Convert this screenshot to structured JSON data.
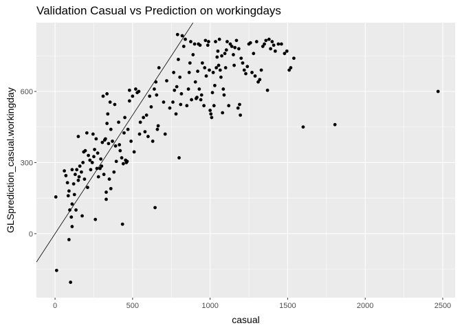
{
  "chart_data": {
    "type": "scatter",
    "title": "Validation Casual vs Prediction on workingdays",
    "xlabel": "casual",
    "ylabel": "GLSprediction_casual.workingday",
    "xlim": [
      -120,
      2580
    ],
    "ylim": [
      -270,
      890
    ],
    "x_ticks": [
      0,
      500,
      1000,
      1500,
      2000,
      2500
    ],
    "y_ticks": [
      0,
      300,
      600
    ],
    "grid": true,
    "panel_background": "#ebebeb",
    "grid_color": "#ffffff",
    "point_color": "#000000",
    "reference_line": {
      "slope": 1,
      "intercept": 0
    },
    "points": [
      [
        5,
        155
      ],
      [
        10,
        -155
      ],
      [
        60,
        265
      ],
      [
        70,
        245
      ],
      [
        80,
        215
      ],
      [
        90,
        180
      ],
      [
        85,
        160
      ],
      [
        90,
        -25
      ],
      [
        100,
        -205
      ],
      [
        95,
        100
      ],
      [
        105,
        70
      ],
      [
        110,
        30
      ],
      [
        110,
        125
      ],
      [
        110,
        270
      ],
      [
        120,
        210
      ],
      [
        125,
        165
      ],
      [
        130,
        250
      ],
      [
        135,
        100
      ],
      [
        140,
        270
      ],
      [
        150,
        410
      ],
      [
        150,
        225
      ],
      [
        155,
        240
      ],
      [
        160,
        285
      ],
      [
        170,
        260
      ],
      [
        175,
        75
      ],
      [
        180,
        300
      ],
      [
        185,
        345
      ],
      [
        190,
        230
      ],
      [
        195,
        350
      ],
      [
        205,
        425
      ],
      [
        210,
        195
      ],
      [
        215,
        330
      ],
      [
        225,
        310
      ],
      [
        230,
        270
      ],
      [
        240,
        300
      ],
      [
        245,
        420
      ],
      [
        250,
        325
      ],
      [
        255,
        355
      ],
      [
        260,
        60
      ],
      [
        265,
        400
      ],
      [
        270,
        275
      ],
      [
        275,
        340
      ],
      [
        280,
        240
      ],
      [
        290,
        275
      ],
      [
        295,
        315
      ],
      [
        300,
        285
      ],
      [
        305,
        385
      ],
      [
        310,
        580
      ],
      [
        315,
        250
      ],
      [
        320,
        395
      ],
      [
        325,
        400
      ],
      [
        330,
        175
      ],
      [
        330,
        145
      ],
      [
        335,
        590
      ],
      [
        335,
        465
      ],
      [
        340,
        505
      ],
      [
        345,
        380
      ],
      [
        350,
        230
      ],
      [
        355,
        555
      ],
      [
        360,
        440
      ],
      [
        360,
        190
      ],
      [
        370,
        390
      ],
      [
        380,
        260
      ],
      [
        385,
        545
      ],
      [
        390,
        370
      ],
      [
        395,
        305
      ],
      [
        410,
        470
      ],
      [
        415,
        375
      ],
      [
        420,
        350
      ],
      [
        430,
        320
      ],
      [
        435,
        40
      ],
      [
        440,
        295
      ],
      [
        445,
        425
      ],
      [
        450,
        490
      ],
      [
        455,
        310
      ],
      [
        460,
        300
      ],
      [
        465,
        305
      ],
      [
        470,
        440
      ],
      [
        480,
        560
      ],
      [
        480,
        605
      ],
      [
        490,
        390
      ],
      [
        500,
        580
      ],
      [
        510,
        345
      ],
      [
        520,
        610
      ],
      [
        530,
        595
      ],
      [
        540,
        600
      ],
      [
        545,
        420
      ],
      [
        550,
        470
      ],
      [
        570,
        490
      ],
      [
        580,
        430
      ],
      [
        590,
        500
      ],
      [
        600,
        410
      ],
      [
        610,
        580
      ],
      [
        620,
        535
      ],
      [
        630,
        390
      ],
      [
        640,
        610
      ],
      [
        645,
        110
      ],
      [
        650,
        640
      ],
      [
        655,
        585
      ],
      [
        660,
        440
      ],
      [
        665,
        455
      ],
      [
        670,
        700
      ],
      [
        700,
        555
      ],
      [
        710,
        420
      ],
      [
        720,
        645
      ],
      [
        740,
        530
      ],
      [
        760,
        555
      ],
      [
        765,
        680
      ],
      [
        770,
        605
      ],
      [
        780,
        505
      ],
      [
        785,
        620
      ],
      [
        790,
        840
      ],
      [
        795,
        735
      ],
      [
        800,
        320
      ],
      [
        805,
        660
      ],
      [
        810,
        545
      ],
      [
        815,
        590
      ],
      [
        820,
        835
      ],
      [
        830,
        790
      ],
      [
        840,
        820
      ],
      [
        850,
        540
      ],
      [
        860,
        610
      ],
      [
        865,
        680
      ],
      [
        870,
        720
      ],
      [
        875,
        810
      ],
      [
        880,
        565
      ],
      [
        890,
        755
      ],
      [
        900,
        800
      ],
      [
        905,
        640
      ],
      [
        910,
        570
      ],
      [
        915,
        575
      ],
      [
        920,
        685
      ],
      [
        925,
        800
      ],
      [
        930,
        610
      ],
      [
        935,
        795
      ],
      [
        940,
        565
      ],
      [
        945,
        585
      ],
      [
        950,
        720
      ],
      [
        960,
        540
      ],
      [
        965,
        700
      ],
      [
        970,
        815
      ],
      [
        975,
        665
      ],
      [
        985,
        795
      ],
      [
        990,
        810
      ],
      [
        995,
        690
      ],
      [
        1000,
        520
      ],
      [
        1005,
        505
      ],
      [
        1010,
        490
      ],
      [
        1015,
        595
      ],
      [
        1020,
        680
      ],
      [
        1025,
        540
      ],
      [
        1030,
        625
      ],
      [
        1035,
        810
      ],
      [
        1040,
        700
      ],
      [
        1045,
        745
      ],
      [
        1050,
        770
      ],
      [
        1055,
        710
      ],
      [
        1060,
        820
      ],
      [
        1065,
        690
      ],
      [
        1070,
        660
      ],
      [
        1075,
        750
      ],
      [
        1080,
        510
      ],
      [
        1085,
        610
      ],
      [
        1090,
        585
      ],
      [
        1095,
        760
      ],
      [
        1100,
        700
      ],
      [
        1105,
        775
      ],
      [
        1110,
        810
      ],
      [
        1120,
        540
      ],
      [
        1130,
        800
      ],
      [
        1140,
        790
      ],
      [
        1150,
        755
      ],
      [
        1155,
        710
      ],
      [
        1160,
        785
      ],
      [
        1170,
        815
      ],
      [
        1180,
        530
      ],
      [
        1185,
        780
      ],
      [
        1190,
        545
      ],
      [
        1195,
        500
      ],
      [
        1200,
        740
      ],
      [
        1210,
        720
      ],
      [
        1220,
        690
      ],
      [
        1230,
        675
      ],
      [
        1240,
        705
      ],
      [
        1250,
        800
      ],
      [
        1260,
        805
      ],
      [
        1270,
        680
      ],
      [
        1280,
        760
      ],
      [
        1290,
        665
      ],
      [
        1300,
        810
      ],
      [
        1310,
        640
      ],
      [
        1320,
        650
      ],
      [
        1330,
        690
      ],
      [
        1340,
        790
      ],
      [
        1350,
        800
      ],
      [
        1360,
        815
      ],
      [
        1370,
        605
      ],
      [
        1380,
        820
      ],
      [
        1390,
        780
      ],
      [
        1400,
        810
      ],
      [
        1410,
        795
      ],
      [
        1420,
        770
      ],
      [
        1440,
        800
      ],
      [
        1460,
        800
      ],
      [
        1480,
        760
      ],
      [
        1495,
        770
      ],
      [
        1510,
        690
      ],
      [
        1520,
        700
      ],
      [
        1540,
        740
      ],
      [
        1600,
        450
      ],
      [
        1805,
        460
      ],
      [
        2470,
        600
      ]
    ]
  }
}
